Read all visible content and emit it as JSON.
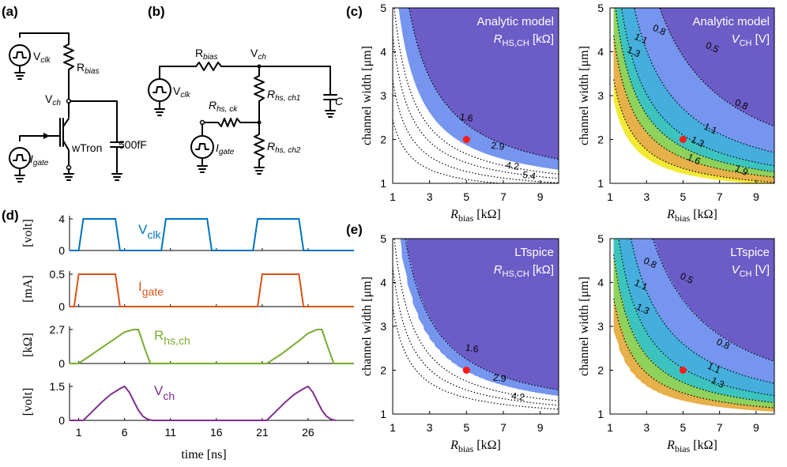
{
  "panels": {
    "a": "(a)",
    "b": "(b)",
    "c": "(c)",
    "d": "(d)",
    "e": "(e)"
  },
  "circuit_a": {
    "vclk": "V",
    "vclk_sub": "clk",
    "rbias": "R",
    "rbias_sub": "bias",
    "vch": "V",
    "vch_sub": "ch",
    "igate": "I",
    "igate_sub": "gate",
    "device": "wTron",
    "cap": "500fF"
  },
  "circuit_b": {
    "rbias": "R",
    "rbias_sub": "bias",
    "vch": "V",
    "vch_sub": "ch",
    "vclk": "V",
    "vclk_sub": "clk",
    "rhsch1": "R",
    "rhsch1_sub": "hs, ch1",
    "rhsck": "R",
    "rhsck_sub": "hs, ck",
    "igate": "I",
    "igate_sub": "gate",
    "rhsch2": "R",
    "rhsch2_sub": "hs, ch2",
    "cap": "C"
  },
  "chart_data": [
    {
      "id": "timing",
      "type": "line",
      "xlabel": "time [ns]",
      "xlim": [
        0,
        31
      ],
      "xticks": [
        1,
        6,
        11,
        16,
        21,
        26
      ],
      "subplots": [
        {
          "name": "V",
          "sub": "clk",
          "ylabel": "[volt]",
          "ylim": [
            0,
            4
          ],
          "yticks": [
            0,
            4
          ],
          "color": "#0072BD",
          "x": [
            0,
            1,
            1.5,
            2.5,
            5,
            5.5,
            10,
            10.5,
            11.5,
            15,
            15.5,
            20,
            20.5,
            21.5,
            25,
            25.5,
            31
          ],
          "y": [
            0,
            0,
            4,
            4,
            4,
            0,
            0,
            4,
            4,
            4,
            0,
            0,
            4,
            4,
            4,
            0,
            0
          ]
        },
        {
          "name": "I",
          "sub": "gate",
          "ylabel": "[mA]",
          "ylim": [
            0,
            0.5
          ],
          "yticks": [
            0,
            0.5
          ],
          "color": "#D95319",
          "x": [
            0,
            0.5,
            1,
            5,
            5.5,
            20.5,
            21,
            25,
            25.5,
            31
          ],
          "y": [
            0,
            0,
            0.5,
            0.5,
            0,
            0,
            0.5,
            0.5,
            0,
            0
          ]
        },
        {
          "name": "R",
          "sub": "hs,ch",
          "ylabel": "[kΩ]",
          "ylim": [
            0,
            2.7
          ],
          "yticks": [
            0,
            2.7
          ],
          "color": "#77AC30",
          "x": [
            0,
            1,
            3,
            5,
            6,
            7,
            7.5,
            8.2,
            8.8,
            21,
            21.5,
            23,
            25,
            26,
            27,
            27.5,
            28.2,
            28.8,
            31
          ],
          "y": [
            0,
            0,
            1,
            2,
            2.5,
            2.7,
            2.7,
            1.2,
            0,
            0,
            0,
            0.7,
            1.8,
            2.4,
            2.7,
            2.7,
            1.2,
            0,
            0
          ]
        },
        {
          "name": "V",
          "sub": "ch",
          "ylabel": "[volt]",
          "ylim": [
            0,
            1.5
          ],
          "yticks": [
            0,
            1.5
          ],
          "color": "#7E2F8E",
          "x": [
            0,
            1.5,
            2.5,
            3.5,
            4.5,
            5.5,
            6,
            6.5,
            7,
            7.5,
            8,
            8.5,
            9,
            21.5,
            22.5,
            23.5,
            24.5,
            25.5,
            26,
            26.5,
            27,
            27.5,
            28,
            28.5,
            29
          ],
          "y": [
            0,
            0,
            0.4,
            0.8,
            1.15,
            1.4,
            1.5,
            1.25,
            0.85,
            0.45,
            0.18,
            0.05,
            0,
            0,
            0.4,
            0.8,
            1.15,
            1.4,
            1.5,
            1.25,
            0.85,
            0.45,
            0.18,
            0.05,
            0
          ]
        }
      ]
    },
    {
      "id": "c_left",
      "type": "heatmap",
      "title": "Analytic model",
      "subtitle_var": "R",
      "subtitle_sub": "HS,CH",
      "subtitle_unit": "[kΩ]",
      "xlabel_var": "R",
      "xlabel_sub": "bias",
      "xlabel_unit": "[kΩ]",
      "ylabel": "channel width [μm]",
      "xlim": [
        1,
        10
      ],
      "ylim": [
        1,
        5
      ],
      "xticks": [
        1,
        3,
        5,
        7,
        9
      ],
      "yticks": [
        1,
        2,
        3,
        4,
        5
      ],
      "marker": [
        5,
        2
      ],
      "contour_labels": [
        {
          "text": "1.6",
          "x": 5,
          "y": 2.5
        },
        {
          "text": "2.9",
          "x": 6.7,
          "y": 1.85
        },
        {
          "text": "4.2",
          "x": 7.5,
          "y": 1.4
        },
        {
          "text": "5.4",
          "x": 8.4,
          "y": 1.18
        }
      ]
    },
    {
      "id": "c_right",
      "type": "heatmap",
      "title": "Analytic model",
      "subtitle_var": "V",
      "subtitle_sub": "CH",
      "subtitle_unit": "[V]",
      "xlabel_var": "R",
      "xlabel_sub": "bias",
      "xlabel_unit": "[kΩ]",
      "ylabel": "channel width [μm]",
      "xlim": [
        1,
        10
      ],
      "ylim": [
        1,
        5
      ],
      "xticks": [
        1,
        3,
        5,
        7,
        9
      ],
      "yticks": [
        1,
        2,
        3,
        4,
        5
      ],
      "marker": [
        5,
        2
      ],
      "contour_labels": [
        {
          "text": "0.5",
          "x": 6.6,
          "y": 4.1
        },
        {
          "text": "0.8",
          "x": 3.7,
          "y": 4.5
        },
        {
          "text": "0.8",
          "x": 8.2,
          "y": 2.8
        },
        {
          "text": "1.1",
          "x": 2.7,
          "y": 4.3
        },
        {
          "text": "1.1",
          "x": 6.5,
          "y": 2.25
        },
        {
          "text": "1.3",
          "x": 2.3,
          "y": 4.0
        },
        {
          "text": "1.3",
          "x": 5.8,
          "y": 1.95
        },
        {
          "text": "1.6",
          "x": 5.6,
          "y": 1.55
        },
        {
          "text": "1.9",
          "x": 8.2,
          "y": 1.3
        }
      ]
    },
    {
      "id": "e_left",
      "type": "heatmap",
      "title": "LTspice",
      "subtitle_var": "R",
      "subtitle_sub": "HS,CH",
      "subtitle_unit": "[kΩ]",
      "xlabel_var": "R",
      "xlabel_sub": "bias",
      "xlabel_unit": "[kΩ]",
      "ylabel": "channel width [μm]",
      "xlim": [
        1,
        10
      ],
      "ylim": [
        1,
        5
      ],
      "xticks": [
        1,
        3,
        5,
        7,
        9
      ],
      "yticks": [
        1,
        2,
        3,
        4,
        5
      ],
      "marker": [
        5,
        2
      ],
      "contour_labels": [
        {
          "text": "1.6",
          "x": 5.3,
          "y": 2.5
        },
        {
          "text": "2.9",
          "x": 6.8,
          "y": 1.82
        },
        {
          "text": "4.2",
          "x": 7.8,
          "y": 1.4
        }
      ]
    },
    {
      "id": "e_right",
      "type": "heatmap",
      "title": "LTspice",
      "subtitle_var": "V",
      "subtitle_sub": "CH",
      "subtitle_unit": "[V]",
      "xlabel_var": "R",
      "xlabel_sub": "bias",
      "xlabel_unit": "[kΩ]",
      "ylabel": "channel width [μm]",
      "xlim": [
        1,
        10
      ],
      "ylim": [
        1,
        5
      ],
      "xticks": [
        1,
        3,
        5,
        7,
        9
      ],
      "yticks": [
        1,
        2,
        3,
        4,
        5
      ],
      "marker": [
        5,
        2
      ],
      "contour_labels": [
        {
          "text": "0.5",
          "x": 5.2,
          "y": 4.1
        },
        {
          "text": "0.8",
          "x": 3.2,
          "y": 4.45
        },
        {
          "text": "0.8",
          "x": 7.2,
          "y": 2.6
        },
        {
          "text": "1.1",
          "x": 2.7,
          "y": 3.95
        },
        {
          "text": "1.1",
          "x": 6.7,
          "y": 2.05
        },
        {
          "text": "1.3",
          "x": 2.8,
          "y": 3.4
        },
        {
          "text": "1.3",
          "x": 6.9,
          "y": 1.72
        }
      ]
    }
  ]
}
